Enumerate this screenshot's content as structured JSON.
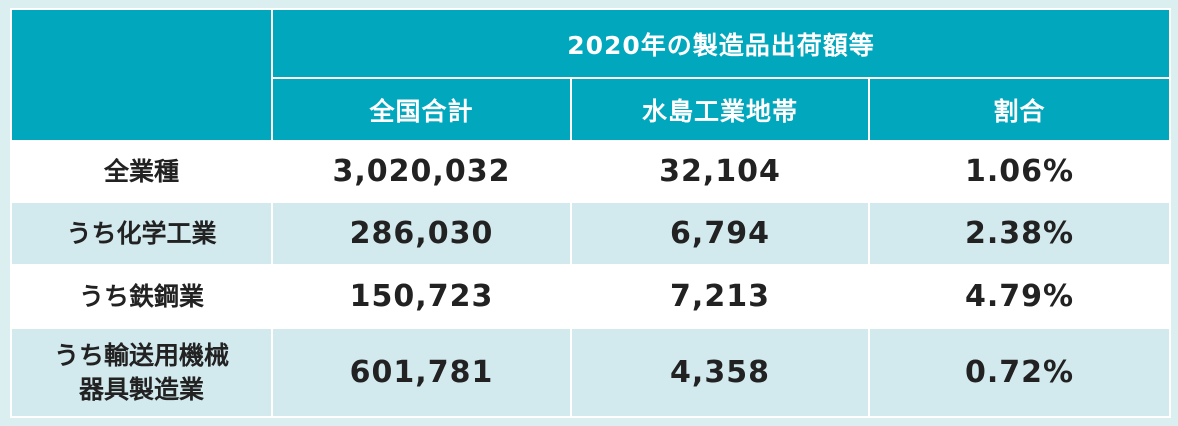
{
  "table": {
    "group_header": "2020年の製造品出荷額等",
    "columns": [
      "全国合計",
      "水島工業地帯",
      "割合"
    ],
    "rows": [
      {
        "label": "全業種",
        "label_line2": "",
        "national": "3,020,032",
        "mizushima": "32,104",
        "ratio": "1.06%"
      },
      {
        "label": "うち化学工業",
        "label_line2": "",
        "national": "286,030",
        "mizushima": "6,794",
        "ratio": "2.38%"
      },
      {
        "label": "うち鉄鋼業",
        "label_line2": "",
        "national": "150,723",
        "mizushima": "7,213",
        "ratio": "4.79%"
      },
      {
        "label": "うち輸送用機械",
        "label_line2": "器具製造業",
        "national": "601,781",
        "mizushima": "4,358",
        "ratio": "0.72%"
      }
    ]
  },
  "colors": {
    "header_bg": "#00a7bd",
    "header_text": "#ffffff",
    "row_white": "#ffffff",
    "row_tint": "#d2e9ee",
    "page_bg": "#dbeef0"
  }
}
